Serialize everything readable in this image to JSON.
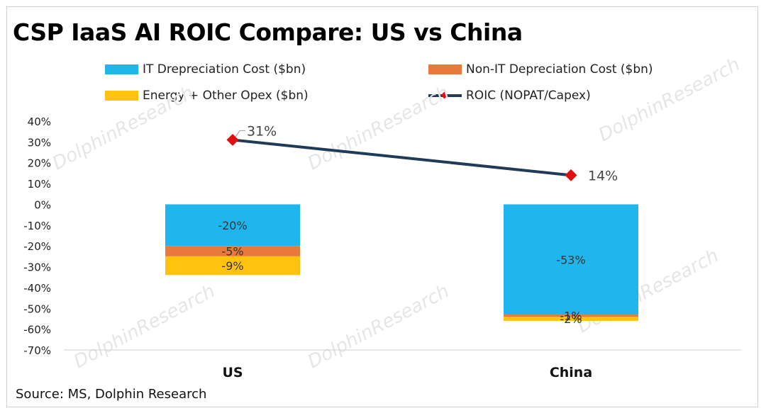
{
  "title": "CSP IaaS AI ROIC Compare: US vs China",
  "source": "Source: MS, Dolphin Research",
  "watermark": "DolphinResearch",
  "legend": [
    {
      "label": "IT Drepreciation Cost ($bn)",
      "kind": "bar",
      "color": "#1fb6ee"
    },
    {
      "label": "Non-IT Depreciation Cost ($bn)",
      "kind": "bar",
      "color": "#e8793a"
    },
    {
      "label": "Energy + Other Opex ($bn)",
      "kind": "bar",
      "color": "#ffc20e"
    },
    {
      "label": "ROIC (NOPAT/Capex)",
      "kind": "line",
      "color": "#1f3b57",
      "marker_color": "#e01010"
    }
  ],
  "chart_data": {
    "type": "bar",
    "stacked": true,
    "categories": [
      "US",
      "China"
    ],
    "series": [
      {
        "name": "IT Drepreciation Cost ($bn)",
        "type": "bar",
        "color": "#1fb6ee",
        "values": [
          -20,
          -53
        ],
        "labels": [
          "-20%",
          "-53%"
        ]
      },
      {
        "name": "Non-IT Depreciation Cost ($bn)",
        "type": "bar",
        "color": "#e8793a",
        "values": [
          -5,
          -1
        ],
        "labels": [
          "-5%",
          "-1%"
        ]
      },
      {
        "name": "Energy + Other Opex ($bn)",
        "type": "bar",
        "color": "#ffc20e",
        "values": [
          -9,
          -2
        ],
        "labels": [
          "-9%",
          "-2%"
        ]
      },
      {
        "name": "ROIC (NOPAT/Capex)",
        "type": "line",
        "color": "#1f3b57",
        "marker_color": "#e01010",
        "values": [
          31,
          14
        ],
        "labels": [
          "31%",
          "14%"
        ]
      }
    ],
    "ylim": [
      -70,
      40
    ],
    "yticks": [
      40,
      30,
      20,
      10,
      0,
      -10,
      -20,
      -30,
      -40,
      -50,
      -60,
      -70
    ],
    "ytick_labels": [
      "40%",
      "30%",
      "20%",
      "10%",
      "0%",
      "-10%",
      "-20%",
      "-30%",
      "-40%",
      "-50%",
      "-60%",
      "-70%"
    ],
    "grid": false,
    "legend_position": "top"
  }
}
